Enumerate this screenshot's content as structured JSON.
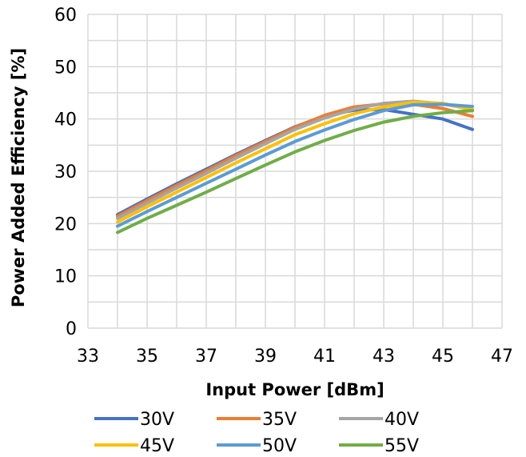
{
  "chart_data": {
    "type": "line",
    "xlabel": "Input Power [dBm]",
    "ylabel": "Power Added Efficiency [%]",
    "xlim": [
      33,
      47
    ],
    "ylim": [
      0,
      60
    ],
    "x_ticks": [
      33,
      35,
      37,
      39,
      41,
      43,
      45,
      47
    ],
    "y_ticks": [
      0,
      10,
      20,
      30,
      40,
      50,
      60
    ],
    "minor_x_step": 1,
    "minor_y_step": 5,
    "grid": true,
    "legend_position": "bottom",
    "x": [
      34,
      35,
      36,
      37,
      38,
      39,
      40,
      41,
      42,
      43,
      44,
      45,
      46
    ],
    "series": [
      {
        "name": "30V",
        "color": "#4472C4",
        "values": [
          21.7,
          24.7,
          27.6,
          30.4,
          33.2,
          35.9,
          38.5,
          40.6,
          41.7,
          41.8,
          40.9,
          40.0,
          38.0
        ]
      },
      {
        "name": "35V",
        "color": "#ED7D31",
        "values": [
          21.4,
          24.4,
          27.3,
          30.1,
          33.0,
          35.7,
          38.4,
          40.7,
          42.3,
          42.9,
          42.8,
          42.0,
          40.5
        ]
      },
      {
        "name": "40V",
        "color": "#A5A5A5",
        "values": [
          21.0,
          23.9,
          26.8,
          29.6,
          32.5,
          35.3,
          38.0,
          40.2,
          41.9,
          43.0,
          43.4,
          42.9,
          41.8
        ]
      },
      {
        "name": "45V",
        "color": "#FFC000",
        "values": [
          20.3,
          23.2,
          26.0,
          28.8,
          31.6,
          34.3,
          37.0,
          39.1,
          41.0,
          42.3,
          43.2,
          43.0,
          41.8
        ]
      },
      {
        "name": "50V",
        "color": "#5B9BD5",
        "values": [
          19.5,
          22.3,
          25.0,
          27.7,
          30.4,
          33.1,
          35.7,
          37.9,
          39.9,
          41.6,
          42.7,
          42.8,
          42.4
        ]
      },
      {
        "name": "55V",
        "color": "#70AD47",
        "values": [
          18.3,
          21.0,
          23.5,
          26.0,
          28.6,
          31.2,
          33.7,
          35.9,
          37.8,
          39.4,
          40.5,
          41.2,
          41.6
        ]
      }
    ]
  }
}
